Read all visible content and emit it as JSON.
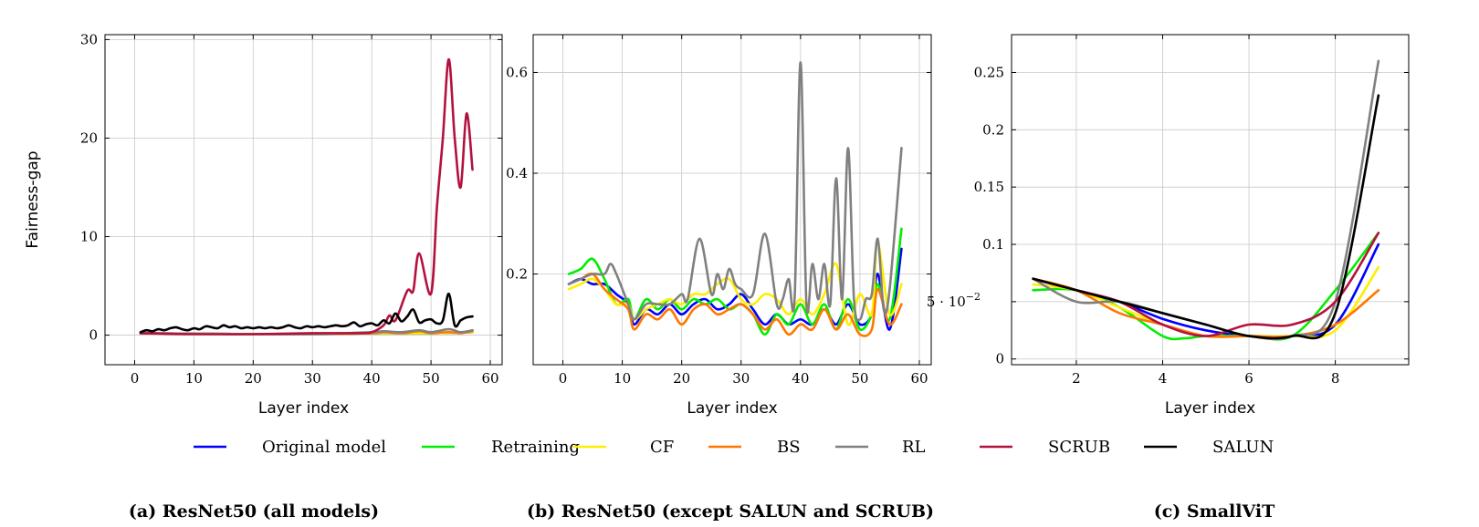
{
  "chart_data": [
    {
      "type": "line",
      "caption": "(a) ResNet50 (all models)",
      "xlabel": "Layer index",
      "ylabel": "Fairness-gap",
      "xlim": [
        -5,
        62
      ],
      "ylim": [
        -3,
        30.5
      ],
      "xticks": [
        0,
        10,
        20,
        30,
        40,
        50,
        60
      ],
      "xtick_labels": [
        "0",
        "10",
        "20",
        "30",
        "40",
        "50",
        "60"
      ],
      "yticks": [
        0,
        10,
        20,
        30
      ],
      "ytick_labels": [
        "0",
        "10",
        "20",
        "30"
      ],
      "grid": true,
      "series": [
        {
          "name": "Original model",
          "color": "#0000ff",
          "x": [
            1,
            10,
            20,
            30,
            40,
            45,
            50,
            57
          ],
          "y": [
            0.2,
            0.15,
            0.1,
            0.1,
            0.2,
            0.2,
            0.2,
            0.3
          ]
        },
        {
          "name": "Retraining",
          "color": "#00ee00",
          "x": [
            1,
            10,
            20,
            30,
            40,
            45,
            50,
            57
          ],
          "y": [
            0.2,
            0.15,
            0.1,
            0.1,
            0.2,
            0.2,
            0.2,
            0.3
          ]
        },
        {
          "name": "CF",
          "color": "#ffee00",
          "x": [
            1,
            10,
            20,
            30,
            40,
            45,
            50,
            57
          ],
          "y": [
            0.2,
            0.15,
            0.1,
            0.1,
            0.2,
            0.2,
            0.2,
            0.3
          ]
        },
        {
          "name": "BS",
          "color": "#ff7700",
          "x": [
            1,
            10,
            20,
            30,
            40,
            42,
            45,
            48,
            50,
            53,
            55,
            57
          ],
          "y": [
            0.2,
            0.15,
            0.1,
            0.1,
            0.2,
            0.3,
            0.2,
            0.4,
            0.2,
            0.3,
            0.2,
            0.4
          ]
        },
        {
          "name": "RL",
          "color": "#808080",
          "x": [
            1,
            10,
            20,
            30,
            40,
            42,
            45,
            48,
            50,
            53,
            55,
            57
          ],
          "y": [
            0.2,
            0.15,
            0.1,
            0.1,
            0.3,
            0.4,
            0.3,
            0.5,
            0.3,
            0.6,
            0.3,
            0.5
          ]
        },
        {
          "name": "SCRUB",
          "color": "#b3123f",
          "x": [
            1,
            10,
            20,
            30,
            38,
            40,
            42,
            43,
            44,
            46,
            47,
            48,
            50,
            51,
            52,
            53,
            54,
            55,
            56,
            57
          ],
          "y": [
            0.2,
            0.1,
            0.1,
            0.2,
            0.2,
            0.3,
            1.0,
            2.0,
            1.5,
            4.5,
            4.5,
            8.3,
            4.2,
            13.0,
            20.0,
            28.0,
            20.0,
            15.0,
            22.5,
            16.8
          ]
        },
        {
          "name": "SALUN",
          "color": "#000000",
          "x": [
            1,
            2,
            3,
            4,
            5,
            6,
            7,
            8,
            9,
            10,
            11,
            12,
            13,
            14,
            15,
            16,
            17,
            18,
            19,
            20,
            21,
            22,
            23,
            24,
            25,
            26,
            27,
            28,
            29,
            30,
            31,
            32,
            33,
            34,
            35,
            36,
            37,
            38,
            39,
            40,
            41,
            42,
            43,
            44,
            45,
            46,
            47,
            48,
            49,
            50,
            51,
            52,
            53,
            54,
            55,
            56,
            57
          ],
          "y": [
            0.3,
            0.5,
            0.4,
            0.6,
            0.5,
            0.7,
            0.8,
            0.6,
            0.5,
            0.7,
            0.6,
            0.9,
            0.8,
            0.7,
            1.0,
            0.8,
            0.9,
            0.7,
            0.8,
            0.7,
            0.8,
            0.7,
            0.8,
            0.7,
            0.8,
            1.0,
            0.8,
            0.7,
            0.9,
            0.8,
            0.9,
            0.8,
            0.9,
            1.0,
            0.9,
            1.0,
            1.3,
            0.9,
            1.1,
            1.2,
            1.0,
            1.5,
            1.2,
            2.2,
            1.4,
            1.9,
            2.6,
            1.3,
            1.5,
            1.6,
            1.2,
            1.5,
            4.2,
            1.0,
            1.5,
            1.8,
            1.9
          ]
        }
      ]
    },
    {
      "type": "line",
      "caption": "(b) ResNet50 (except SALUN and SCRUB)",
      "xlabel": "Layer index",
      "ylabel": "",
      "xlim": [
        -5,
        62
      ],
      "ylim": [
        0.02,
        0.675
      ],
      "xticks": [
        0,
        10,
        20,
        30,
        40,
        50,
        60
      ],
      "xtick_labels": [
        "0",
        "10",
        "20",
        "30",
        "40",
        "50",
        "60"
      ],
      "yticks": [
        0.2,
        0.4,
        0.6
      ],
      "ytick_labels": [
        "0.2",
        "0.4",
        "0.6"
      ],
      "grid": true,
      "series": [
        {
          "name": "Original model",
          "color": "#0000ff",
          "x": [
            1,
            3,
            5,
            7,
            9,
            11,
            12,
            14,
            16,
            18,
            20,
            22,
            24,
            26,
            28,
            30,
            32,
            34,
            36,
            38,
            40,
            42,
            44,
            46,
            48,
            50,
            52,
            53,
            55,
            57
          ],
          "y": [
            0.18,
            0.19,
            0.18,
            0.18,
            0.16,
            0.14,
            0.1,
            0.13,
            0.12,
            0.14,
            0.12,
            0.14,
            0.15,
            0.13,
            0.14,
            0.16,
            0.13,
            0.1,
            0.12,
            0.1,
            0.11,
            0.1,
            0.13,
            0.1,
            0.14,
            0.1,
            0.12,
            0.2,
            0.09,
            0.25
          ]
        },
        {
          "name": "Retraining",
          "color": "#00ee00",
          "x": [
            1,
            3,
            5,
            7,
            9,
            11,
            12,
            14,
            16,
            18,
            20,
            22,
            24,
            26,
            28,
            30,
            32,
            34,
            36,
            38,
            40,
            42,
            44,
            46,
            48,
            50,
            52,
            53,
            55,
            57
          ],
          "y": [
            0.2,
            0.21,
            0.23,
            0.19,
            0.14,
            0.15,
            0.11,
            0.15,
            0.13,
            0.15,
            0.13,
            0.15,
            0.14,
            0.15,
            0.13,
            0.14,
            0.12,
            0.08,
            0.12,
            0.1,
            0.14,
            0.1,
            0.14,
            0.09,
            0.15,
            0.09,
            0.12,
            0.18,
            0.11,
            0.29
          ]
        },
        {
          "name": "CF",
          "color": "#ffee00",
          "x": [
            1,
            3,
            5,
            7,
            9,
            11,
            12,
            14,
            16,
            18,
            20,
            22,
            24,
            26,
            28,
            30,
            32,
            34,
            36,
            38,
            40,
            42,
            44,
            46,
            48,
            50,
            52,
            53,
            55,
            57
          ],
          "y": [
            0.17,
            0.18,
            0.19,
            0.17,
            0.14,
            0.14,
            0.11,
            0.13,
            0.14,
            0.15,
            0.14,
            0.16,
            0.16,
            0.18,
            0.19,
            0.15,
            0.14,
            0.16,
            0.15,
            0.12,
            0.15,
            0.12,
            0.16,
            0.22,
            0.1,
            0.16,
            0.12,
            0.26,
            0.12,
            0.18
          ]
        },
        {
          "name": "BS",
          "color": "#ff7700",
          "x": [
            1,
            3,
            5,
            7,
            9,
            11,
            12,
            14,
            16,
            18,
            20,
            22,
            24,
            26,
            28,
            30,
            32,
            34,
            36,
            38,
            40,
            42,
            44,
            46,
            48,
            50,
            52,
            53,
            55,
            57
          ],
          "y": [
            0.18,
            0.19,
            0.2,
            0.17,
            0.15,
            0.13,
            0.09,
            0.12,
            0.11,
            0.13,
            0.1,
            0.13,
            0.14,
            0.12,
            0.13,
            0.14,
            0.12,
            0.09,
            0.11,
            0.08,
            0.1,
            0.09,
            0.13,
            0.09,
            0.12,
            0.08,
            0.09,
            0.17,
            0.1,
            0.14
          ]
        },
        {
          "name": "RL",
          "color": "#808080",
          "x": [
            1,
            3,
            5,
            7,
            8,
            9,
            11,
            12,
            14,
            16,
            18,
            20,
            21,
            23,
            25,
            26,
            27,
            28,
            29,
            30,
            32,
            34,
            36,
            37,
            38,
            39,
            40,
            41,
            42,
            43,
            44,
            45,
            46,
            47,
            48,
            49,
            50,
            51,
            52,
            53,
            54,
            55,
            57
          ],
          "y": [
            0.18,
            0.19,
            0.2,
            0.2,
            0.22,
            0.2,
            0.14,
            0.11,
            0.14,
            0.14,
            0.14,
            0.16,
            0.15,
            0.27,
            0.16,
            0.2,
            0.17,
            0.21,
            0.18,
            0.17,
            0.16,
            0.28,
            0.14,
            0.15,
            0.19,
            0.15,
            0.62,
            0.14,
            0.22,
            0.15,
            0.22,
            0.14,
            0.39,
            0.15,
            0.45,
            0.15,
            0.11,
            0.15,
            0.16,
            0.27,
            0.13,
            0.17,
            0.45
          ]
        }
      ]
    },
    {
      "type": "line",
      "caption": "(c) SmallViT",
      "xlabel": "Layer index",
      "ylabel": "",
      "xlim": [
        0.5,
        9.7
      ],
      "ylim": [
        -0.005,
        0.283
      ],
      "xticks": [
        2,
        4,
        6,
        8
      ],
      "xtick_labels": [
        "2",
        "4",
        "6",
        "8"
      ],
      "yticks": [
        0,
        0.05,
        0.1,
        0.15,
        0.2,
        0.25
      ],
      "ytick_labels": [
        "0",
        "5 · 10",
        "0.1",
        "0.15",
        "0.2",
        "0.25"
      ],
      "ytick_exponent": "−2",
      "grid": true,
      "series": [
        {
          "name": "Original model",
          "color": "#0000ff",
          "x": [
            1,
            2,
            3,
            4,
            5,
            6,
            7,
            8,
            9
          ],
          "y": [
            0.07,
            0.06,
            0.05,
            0.035,
            0.025,
            0.02,
            0.02,
            0.03,
            0.1
          ]
        },
        {
          "name": "Retraining",
          "color": "#00ee00",
          "x": [
            1,
            2,
            3,
            4,
            4.5,
            5,
            6,
            7,
            8,
            9
          ],
          "y": [
            0.06,
            0.06,
            0.045,
            0.02,
            0.018,
            0.02,
            0.02,
            0.02,
            0.06,
            0.11
          ]
        },
        {
          "name": "CF",
          "color": "#ffee00",
          "x": [
            1,
            2,
            3,
            4,
            5,
            6,
            7,
            8,
            9
          ],
          "y": [
            0.065,
            0.06,
            0.045,
            0.03,
            0.02,
            0.02,
            0.02,
            0.025,
            0.08
          ]
        },
        {
          "name": "BS",
          "color": "#ff7700",
          "x": [
            1,
            2,
            3,
            4,
            5,
            6,
            7,
            8,
            9
          ],
          "y": [
            0.07,
            0.06,
            0.04,
            0.03,
            0.02,
            0.02,
            0.02,
            0.03,
            0.06
          ]
        },
        {
          "name": "RL",
          "color": "#808080",
          "x": [
            1,
            2,
            3,
            4,
            5,
            6,
            7,
            8,
            9
          ],
          "y": [
            0.07,
            0.05,
            0.05,
            0.04,
            0.03,
            0.02,
            0.02,
            0.05,
            0.26
          ]
        },
        {
          "name": "SCRUB",
          "color": "#b3123f",
          "x": [
            1,
            2,
            3,
            4,
            5,
            6,
            7,
            8,
            9
          ],
          "y": [
            0.07,
            0.06,
            0.05,
            0.03,
            0.02,
            0.03,
            0.03,
            0.05,
            0.11
          ]
        },
        {
          "name": "SALUN",
          "color": "#000000",
          "x": [
            1,
            2,
            3,
            4,
            5,
            6,
            7,
            8,
            9
          ],
          "y": [
            0.07,
            0.06,
            0.05,
            0.04,
            0.03,
            0.02,
            0.02,
            0.04,
            0.23
          ]
        }
      ]
    }
  ],
  "legend": [
    {
      "label": "Original model",
      "color": "#0000ff"
    },
    {
      "label": "Retraining",
      "color": "#00ee00"
    },
    {
      "label": "CF",
      "color": "#ffee00"
    },
    {
      "label": "BS",
      "color": "#ff7700"
    },
    {
      "label": "RL",
      "color": "#808080"
    },
    {
      "label": "SCRUB",
      "color": "#b3123f"
    },
    {
      "label": "SALUN",
      "color": "#000000"
    }
  ]
}
